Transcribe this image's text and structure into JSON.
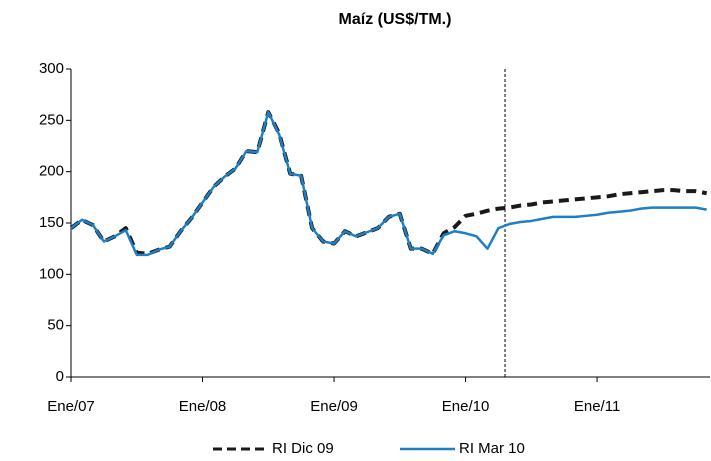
{
  "chart_data": {
    "type": "line",
    "title": "Maíz (US$/TM.)",
    "categories": [
      "Ene/07",
      null,
      null,
      null,
      null,
      null,
      null,
      null,
      null,
      null,
      null,
      null,
      "Ene/08",
      null,
      null,
      null,
      null,
      null,
      null,
      null,
      null,
      null,
      null,
      null,
      "Ene/09",
      null,
      null,
      null,
      null,
      null,
      null,
      null,
      null,
      null,
      null,
      null,
      "Ene/10",
      null,
      null,
      null,
      null,
      null,
      null,
      null,
      null,
      null,
      null,
      null,
      "Ene/11",
      null,
      null,
      null,
      null,
      null,
      null,
      null,
      null,
      null,
      null
    ],
    "series": [
      {
        "name": "RI Dic 09",
        "color": "#1a1a1a",
        "dashed": true,
        "values": [
          145,
          153,
          148,
          132,
          137,
          145,
          121,
          120,
          124,
          127,
          142,
          155,
          170,
          185,
          195,
          203,
          220,
          219,
          258,
          237,
          198,
          196,
          145,
          132,
          130,
          142,
          137,
          141,
          145,
          156,
          159,
          125,
          125,
          120,
          140,
          146,
          157,
          159,
          162,
          164,
          165,
          167,
          168,
          170,
          171,
          172,
          173,
          174,
          175,
          176,
          178,
          179,
          180,
          181,
          182,
          182,
          181,
          181,
          179
        ]
      },
      {
        "name": "RI Mar 10",
        "color": "#1f7fc4",
        "dashed": false,
        "values": [
          145,
          153,
          148,
          132,
          137,
          143,
          119,
          119,
          124,
          127,
          142,
          155,
          170,
          185,
          195,
          203,
          220,
          219,
          258,
          236,
          198,
          196,
          145,
          132,
          130,
          142,
          137,
          141,
          145,
          156,
          159,
          125,
          125,
          120,
          138,
          142,
          140,
          137,
          125,
          145,
          149,
          151,
          152,
          154,
          156,
          156,
          156,
          157,
          158,
          160,
          161,
          162,
          164,
          165,
          165,
          165,
          165,
          165,
          163
        ]
      }
    ],
    "ylim": [
      0,
      300
    ],
    "yticks": [
      0,
      50,
      100,
      150,
      200,
      250,
      300
    ],
    "grid": false
  }
}
